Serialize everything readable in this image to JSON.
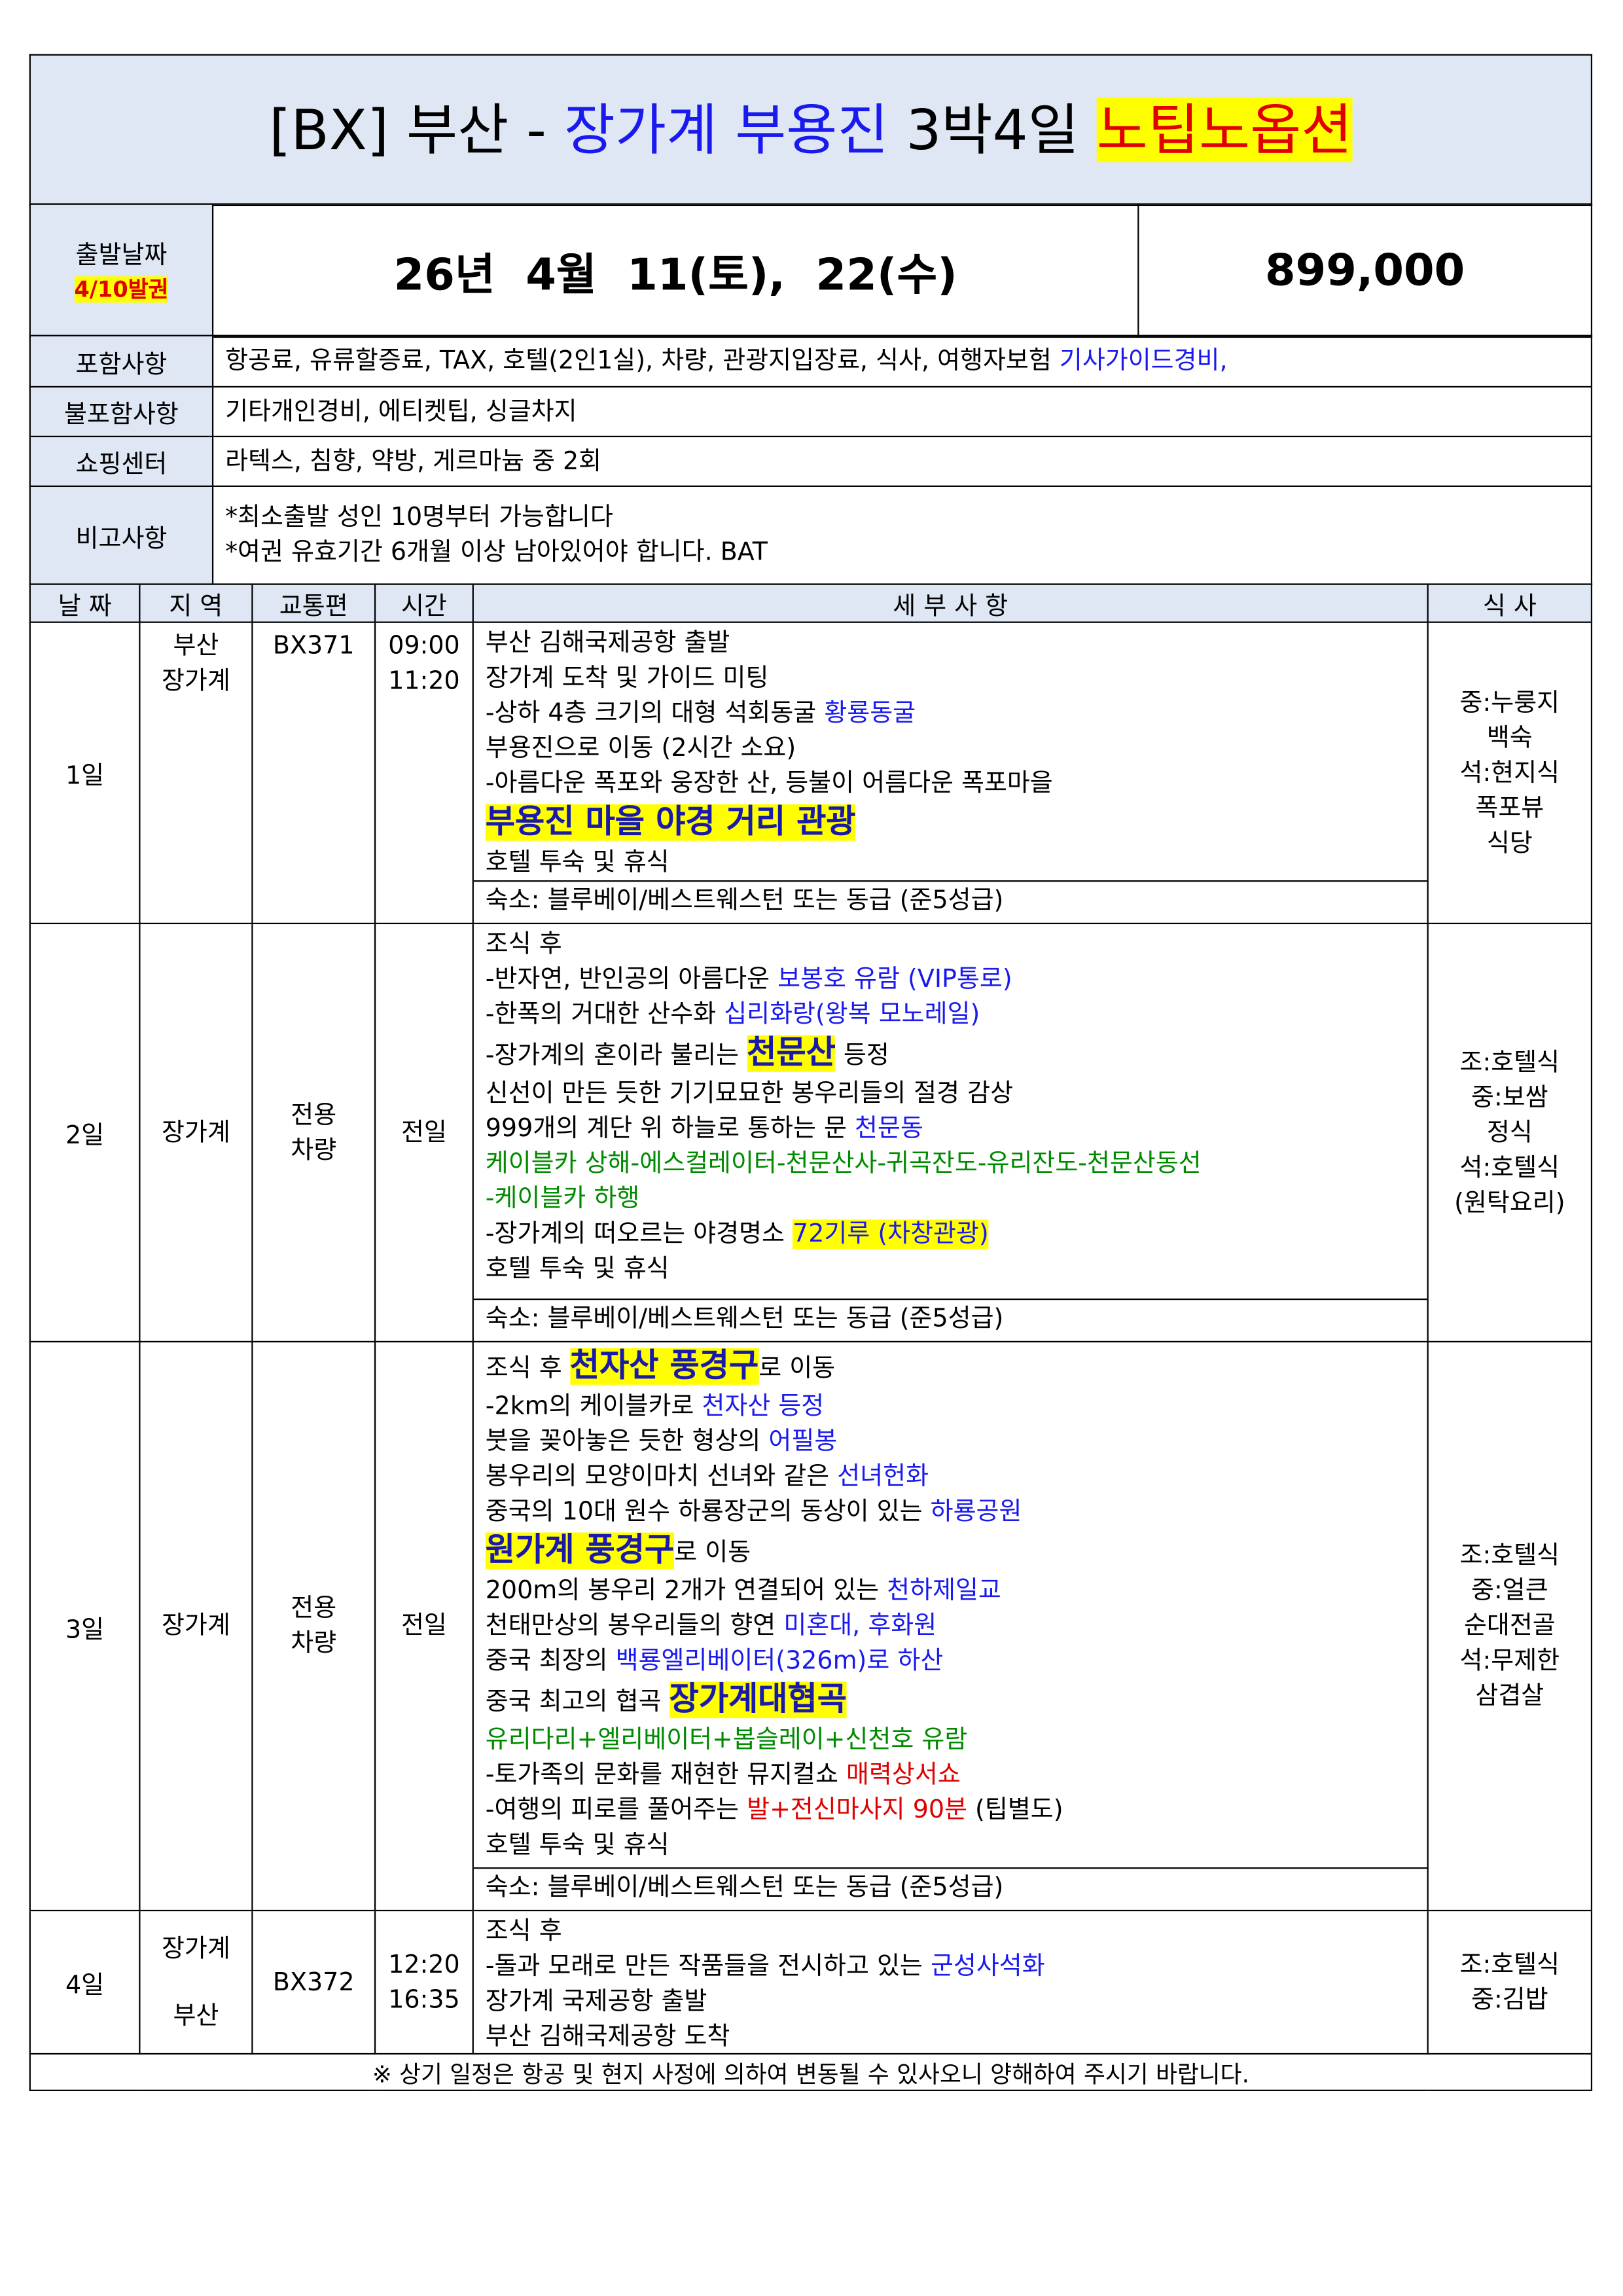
{
  "title": [
    {
      "text": "[BX] 부산 - "
    },
    {
      "text": "장가계 부용진",
      "color": "#1a1aee"
    },
    {
      "text": " 3박4일 "
    },
    {
      "text": "노팁노옵션",
      "color": "#e00000",
      "highlight": "#ffff00"
    }
  ],
  "departure": {
    "label": "출발날짜",
    "note": "4/10발권",
    "dates": "26년  4월  11(토),  22(수)",
    "price": "899,000"
  },
  "info": [
    {
      "label": "포함사항",
      "lines": [
        [
          {
            "text": "항공료, 유류할증료, TAX, 호텔(2인1실), 차량, 관광지입장료, 식사, 여행자보험 "
          },
          {
            "text": "기사가이드경비,",
            "color": "#1a1aee"
          }
        ]
      ]
    },
    {
      "label": "불포함사항",
      "lines": [
        [
          {
            "text": "기타개인경비, 에티켓팁, 싱글차지"
          }
        ]
      ]
    },
    {
      "label": "쇼핑센터",
      "lines": [
        [
          {
            "text": "라텍스, 침향, 약방, 게르마늄 중 2회"
          }
        ]
      ]
    },
    {
      "label": "비고사항",
      "lines": [
        [
          {
            "text": "*최소출발 성인 10명부터 가능합니다"
          }
        ],
        [
          {
            "text": "*여권 유효기간 6개월 이상 남아있어야 합니다. BAT"
          }
        ]
      ]
    }
  ],
  "schedule": {
    "headers": [
      "날 짜",
      "지 역",
      "교통편",
      "시간",
      "세 부 사 항",
      "식 사"
    ],
    "days": [
      {
        "day": "1일",
        "region": [
          "부산",
          "장가계"
        ],
        "flight": "BX371",
        "time": [
          "09:00",
          "11:20"
        ],
        "lines": [
          [
            {
              "text": "부산 김해국제공항 출발"
            }
          ],
          [
            {
              "text": "장가계 도착 및 가이드 미팅"
            }
          ],
          [
            {
              "text": "-상하 4층 크기의 대형 석회동굴 "
            },
            {
              "text": "황룡동굴",
              "color": "#1a1aee"
            }
          ],
          [
            {
              "text": "부용진으로 이동 (2시간 소요)"
            }
          ],
          [
            {
              "text": "-아름다운 폭포와 웅장한 산, 등불이 어름다운 폭포마을"
            }
          ],
          [
            {
              "text": "부용진 마을 야경 거리 관광",
              "color": "#1a1aaa",
              "highlight": "#ffff00",
              "size": "large"
            }
          ],
          [
            {
              "text": "호텔 투숙 및 휴식"
            }
          ]
        ],
        "hotel": "숙소: 블루베이/베스트웨스턴 또는 동급 (준5성급)",
        "meals": [
          "중:누룽지",
          "백숙",
          "석:현지식",
          "폭포뷰",
          "식당"
        ]
      },
      {
        "day": "2일",
        "region": [
          "장가계"
        ],
        "flight": "전용\n차량",
        "time": [
          "전일"
        ],
        "lines": [
          [
            {
              "text": "조식 후"
            }
          ],
          [
            {
              "text": "-반자연, 반인공의 아름다운 "
            },
            {
              "text": "보봉호 유람 (VIP통로)",
              "color": "#1a1aee"
            }
          ],
          [
            {
              "text": "-한폭의 거대한 산수화 "
            },
            {
              "text": "십리화랑(왕복 모노레일)",
              "color": "#1a1aee"
            }
          ],
          [
            {
              "text": "-장가계의 혼이라 불리는 "
            },
            {
              "text": "천문산",
              "color": "#1a1aaa",
              "highlight": "#ffff00",
              "size": "large"
            },
            {
              "text": " 등정"
            }
          ],
          [
            {
              "text": "신선이 만든 듯한 기기묘묘한 봉우리들의 절경 감상"
            }
          ],
          [
            {
              "text": "999개의 계단 위 하늘로 통하는 문 "
            },
            {
              "text": "천문동",
              "color": "#1a1aee"
            }
          ],
          [
            {
              "text": "케이블카 상해-에스컬레이터-천문산사-귀곡잔도-유리잔도-천문산동선",
              "color": "#008a00"
            }
          ],
          [
            {
              "text": "-케이블카 하행",
              "color": "#008a00"
            }
          ],
          [
            {
              "text": "-장가계의 떠오르는 야경명소 "
            },
            {
              "text": "72기루 (차창관광)",
              "color": "#1a1aee",
              "highlight": "#ffff00"
            }
          ],
          [
            {
              "text": "호텔 투숙 및 휴식"
            }
          ]
        ],
        "hotel": "숙소: 블루베이/베스트웨스턴 또는 동급 (준5성급)",
        "meals": [
          "조:호텔식",
          "중:보쌈",
          "정식",
          "석:호텔식",
          "(원탁요리)"
        ]
      },
      {
        "day": "3일",
        "region": [
          "장가계"
        ],
        "flight": "전용\n차량",
        "time": [
          "전일"
        ],
        "lines": [
          [
            {
              "text": "조식 후 "
            },
            {
              "text": "천자산 풍경구",
              "color": "#1a1aaa",
              "highlight": "#ffff00",
              "size": "large"
            },
            {
              "text": "로 이동"
            }
          ],
          [
            {
              "text": "-2km의 케이블카로 "
            },
            {
              "text": "천자산 등정",
              "color": "#1a1aee"
            }
          ],
          [
            {
              "text": "붓을 꽂아놓은 듯한 형상의 "
            },
            {
              "text": "어필봉",
              "color": "#1a1aee"
            }
          ],
          [
            {
              "text": "봉우리의 모양이마치 선녀와 같은 "
            },
            {
              "text": "선녀헌화",
              "color": "#1a1aee"
            }
          ],
          [
            {
              "text": "중국의 10대 원수 하룡장군의 동상이 있는 "
            },
            {
              "text": "하룡공원",
              "color": "#1a1aee"
            }
          ],
          [
            {
              "text": "원가계 풍경구",
              "color": "#1a1aaa",
              "highlight": "#ffff00",
              "size": "large"
            },
            {
              "text": "로 이동"
            }
          ],
          [
            {
              "text": "200m의 봉우리 2개가 연결되어 있는 "
            },
            {
              "text": "천하제일교",
              "color": "#1a1aee"
            }
          ],
          [
            {
              "text": "천태만상의 봉우리들의 향연 "
            },
            {
              "text": "미혼대, 후화원",
              "color": "#1a1aee"
            }
          ],
          [
            {
              "text": "중국 최장의 "
            },
            {
              "text": "백룡엘리베이터(326m)로 하산",
              "color": "#1a1aee"
            }
          ],
          [
            {
              "text": "중국 최고의 협곡 "
            },
            {
              "text": "장가계대협곡",
              "color": "#1a1aaa",
              "highlight": "#ffff00",
              "size": "large"
            }
          ],
          [
            {
              "text": "유리다리+엘리베이터+봅슬레이+신천호 유람",
              "color": "#008a00"
            }
          ],
          [
            {
              "text": "-토가족의 문화를 재현한 뮤지컬쇼 "
            },
            {
              "text": "매력상서쇼",
              "color": "#e00000"
            }
          ],
          [
            {
              "text": "-여행의 피로를 풀어주는 "
            },
            {
              "text": "발+전신마사지 90분",
              "color": "#e00000"
            },
            {
              "text": " (팁별도)"
            }
          ],
          [
            {
              "text": "호텔 투숙 및 휴식"
            }
          ]
        ],
        "hotel": "숙소: 블루베이/베스트웨스턴 또는 동급 (준5성급)",
        "meals": [
          "조:호텔식",
          "중:얼큰",
          "순대전골",
          "석:무제한",
          "삼겹살"
        ]
      },
      {
        "day": "4일",
        "region": [
          "장가계",
          "부산"
        ],
        "flight": "BX372",
        "time": [
          "12:20",
          "16:35"
        ],
        "lines": [
          [
            {
              "text": "조식 후"
            }
          ],
          [
            {
              "text": "-돌과 모래로 만든 작품들을 전시하고 있는 "
            },
            {
              "text": "군성사석화",
              "color": "#1a1aee"
            }
          ],
          [
            {
              "text": "장가계 국제공항 출발"
            }
          ],
          [
            {
              "text": "부산 김해국제공항 도착"
            }
          ]
        ],
        "meals": [
          "조:호텔식",
          "중:김밥"
        ]
      }
    ],
    "footer": "※ 상기 일정은 항공 및 현지 사정에 의하여 변동될 수 있사오니 양해하여 주시기 바랍니다."
  }
}
